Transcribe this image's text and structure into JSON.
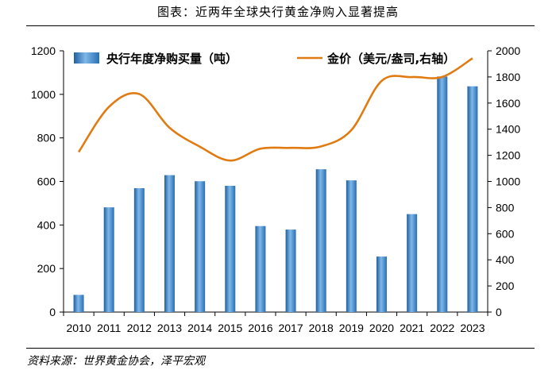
{
  "header": {
    "title": "图表：近两年全球央行黄金净购入显著提高"
  },
  "footer": {
    "source": "资料来源：世界黄金协会，泽平宏观"
  },
  "colors": {
    "bar": "#3d88c9",
    "line": "#e07b12"
  },
  "chart_data": {
    "type": "bar",
    "categories": [
      "2010",
      "2011",
      "2012",
      "2013",
      "2014",
      "2015",
      "2016",
      "2017",
      "2018",
      "2019",
      "2020",
      "2021",
      "2022",
      "2023"
    ],
    "series": [
      {
        "name": "央行年度净购买量（吨）",
        "type": "bar",
        "axis": "left",
        "values": [
          79,
          481,
          569,
          629,
          601,
          580,
          395,
          379,
          656,
          605,
          255,
          450,
          1082,
          1037
        ]
      },
      {
        "name": "金价（美元/盎司,右轴）",
        "type": "line",
        "axis": "right",
        "values": [
          1225,
          1571,
          1669,
          1411,
          1266,
          1160,
          1251,
          1257,
          1268,
          1393,
          1770,
          1799,
          1800,
          1943
        ]
      }
    ],
    "ylim_left": [
      0,
      1200
    ],
    "ylim_right": [
      0,
      2000
    ],
    "yticks_left": [
      0,
      200,
      400,
      600,
      800,
      1000,
      1200
    ],
    "yticks_right": [
      0,
      200,
      400,
      600,
      800,
      1000,
      1200,
      1400,
      1600,
      1800,
      2000
    ],
    "legend": "top",
    "grid": false
  }
}
